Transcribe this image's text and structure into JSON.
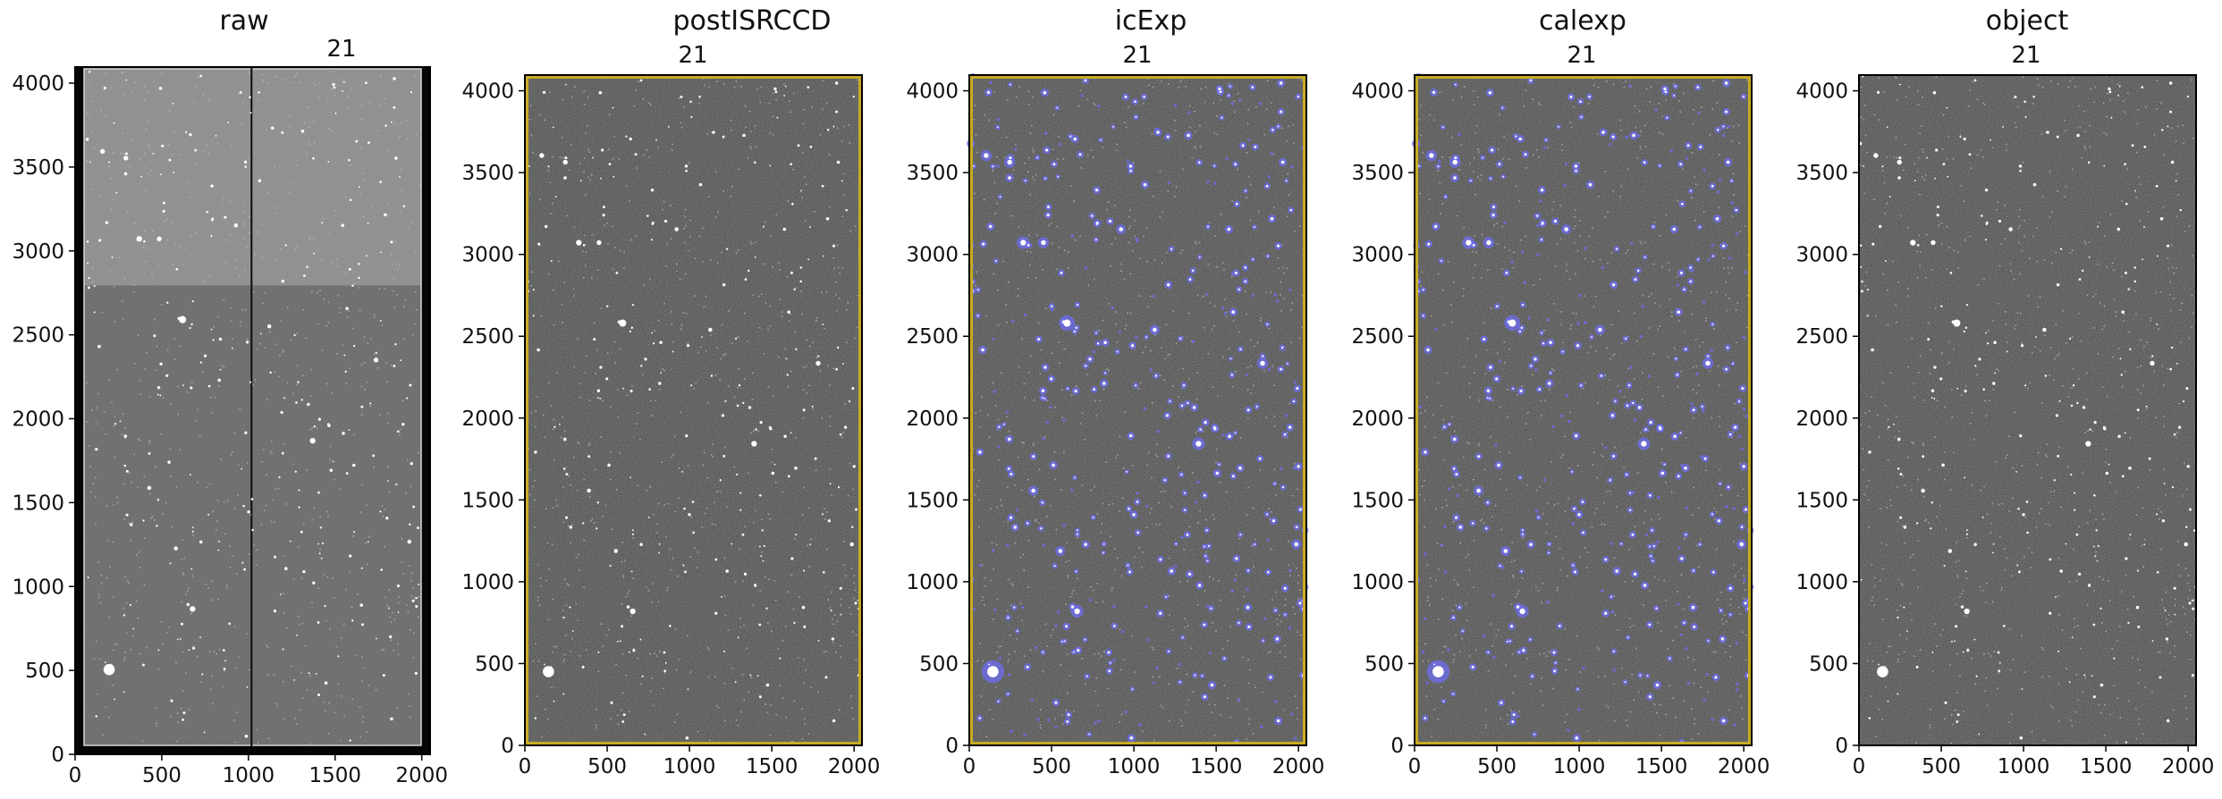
{
  "figure": {
    "panels": [
      {
        "title": "raw",
        "ccd": "21",
        "style": "raw",
        "xticks": [
          "0",
          "500",
          "1000",
          "1500",
          "2000"
        ],
        "yticks": [
          "0",
          "500",
          "1000",
          "1500",
          "2000",
          "2500",
          "3000",
          "3500",
          "4000"
        ]
      },
      {
        "title": "postISRCCD",
        "ccd": "21",
        "style": "isr",
        "xticks": [
          "0",
          "500",
          "1000",
          "1500",
          "2000"
        ],
        "yticks": [
          "0",
          "500",
          "1000",
          "1500",
          "2000",
          "2500",
          "3000",
          "3500",
          "4000"
        ]
      },
      {
        "title": "icExp",
        "ccd": "21",
        "style": "masked",
        "xticks": [
          "0",
          "500",
          "1000",
          "1500",
          "2000"
        ],
        "yticks": [
          "0",
          "500",
          "1000",
          "1500",
          "2000",
          "2500",
          "3000",
          "3500",
          "4000"
        ]
      },
      {
        "title": "calexp",
        "ccd": "21",
        "style": "masked",
        "xticks": [
          "0",
          "500",
          "1000",
          "1500",
          "2000"
        ],
        "yticks": [
          "0",
          "500",
          "1000",
          "1500",
          "2000",
          "2500",
          "3000",
          "3500",
          "4000"
        ]
      },
      {
        "title": "object",
        "ccd": "21",
        "style": "object",
        "xticks": [
          "0",
          "500",
          "1000",
          "1500",
          "2000"
        ],
        "yticks": [
          "0",
          "500",
          "1000",
          "1500",
          "2000",
          "2500",
          "3000",
          "3500",
          "4000"
        ]
      }
    ],
    "colors": {
      "raw_upper": "#8f8f8f",
      "raw_lower": "#6c6c6c",
      "raw_border": "#050505",
      "sky": "#4a4a4a",
      "detection_mask": "#6e6ef2",
      "edge_mask": "#c7ac22",
      "star": "#ffffff"
    }
  }
}
